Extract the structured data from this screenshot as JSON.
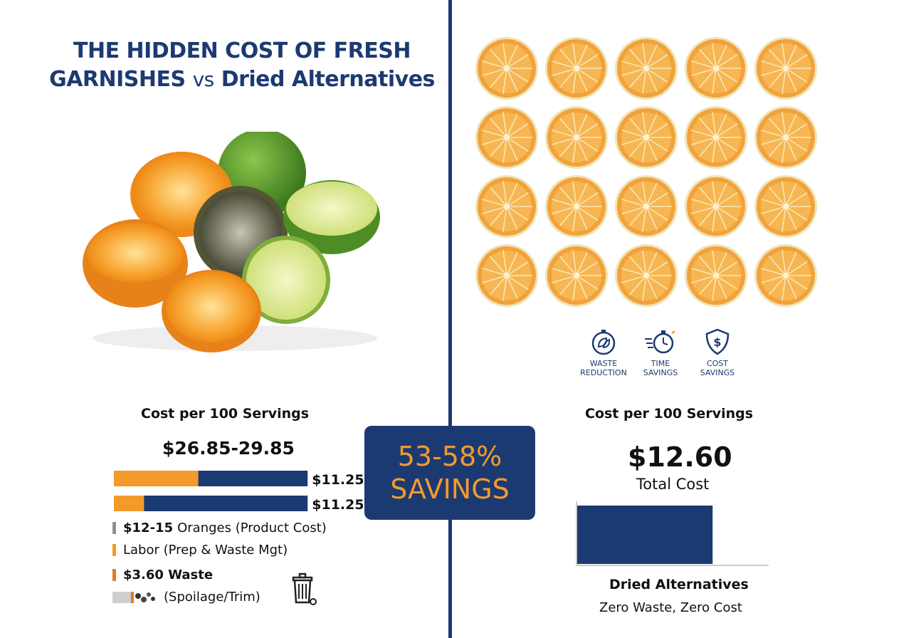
{
  "title": {
    "line1": "THE HIDDEN COST OF FRESH",
    "line2_main": "GARNISHES",
    "line2_vs": "vs",
    "line2_end": "Dried Alternatives"
  },
  "fresh": {
    "heading": "Cost per 100 Servings",
    "total": "$26.85-29.85",
    "legend": [
      {
        "bold": "$12-15",
        "text": "Oranges (Product Cost)",
        "color": "#8a958a"
      },
      {
        "bold": "",
        "text": "Labor (Prep & Waste Mgt)",
        "color": "#f39a2b"
      },
      {
        "bold": "$3.60 Waste",
        "text": "",
        "color": "#e57a1e"
      },
      {
        "bold": "",
        "text": "(Spoilage/Trim)",
        "color": "#c9c9c9"
      }
    ]
  },
  "savings": {
    "line1": "53-58%",
    "line2": "SAVINGS"
  },
  "dried": {
    "heading": "Cost per 100 Servings",
    "total": "$12.60",
    "total_label": "Total Cost",
    "category": "Dried Alternatives",
    "sublabel": "Zero Waste, Zero Cost",
    "benefits": [
      {
        "label": "WASTE\nREDUCTION",
        "icon": "leaf-timer-icon"
      },
      {
        "label": "TIME\nSAVINGS",
        "icon": "stopwatch-icon"
      },
      {
        "label": "COST\nSAVINGS",
        "icon": "dollar-shield-icon"
      }
    ]
  },
  "colors": {
    "navy": "#1c3a72",
    "orange": "#f39a2b"
  },
  "chart_data": [
    {
      "type": "bar",
      "orientation": "horizontal",
      "stacked": true,
      "title": "Cost per 100 Servings",
      "series": [
        {
          "values": [
            4.9,
            1.75
          ]
        },
        {
          "values": [
            6.35,
            9.5
          ]
        }
      ],
      "data_labels": [
        "$11.25",
        "$11.25"
      ]
    },
    {
      "type": "bar",
      "title": "Cost per 100 Servings",
      "categories": [
        "Dried Alternatives"
      ],
      "values": [
        12.6
      ],
      "data_labels": [
        "$12.60"
      ]
    }
  ]
}
